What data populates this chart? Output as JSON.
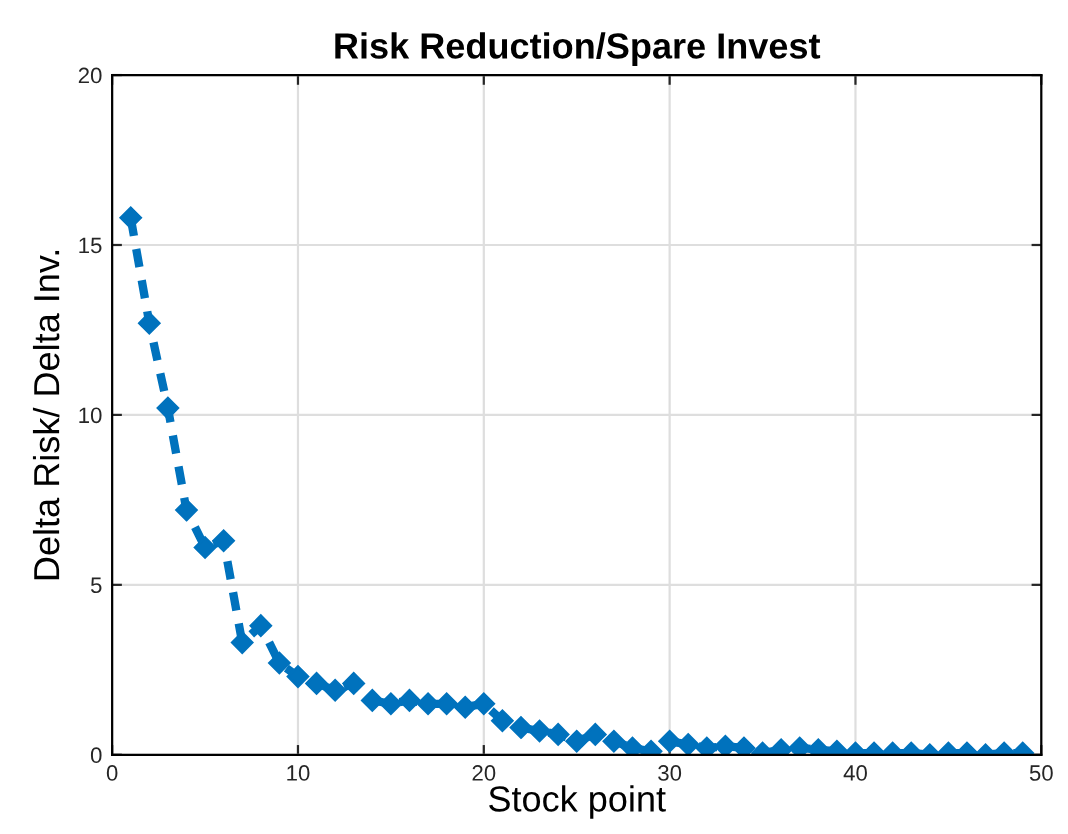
{
  "chart_data": {
    "type": "line",
    "title": "Risk Reduction/Spare Invest",
    "xlabel": "Stock point",
    "ylabel": "Delta Risk/ Delta Inv.",
    "x": [
      1,
      2,
      3,
      4,
      5,
      6,
      7,
      8,
      9,
      10,
      11,
      12,
      13,
      14,
      15,
      16,
      17,
      18,
      19,
      20,
      21,
      22,
      23,
      24,
      25,
      26,
      27,
      28,
      29,
      30,
      31,
      32,
      33,
      34,
      35,
      36,
      37,
      38,
      39,
      40,
      41,
      42,
      43,
      44,
      45,
      46,
      47,
      48,
      49
    ],
    "series": [
      {
        "color": "#0072bd",
        "values": [
          15.8,
          12.7,
          10.2,
          7.2,
          6.1,
          6.3,
          3.3,
          3.8,
          2.7,
          2.3,
          2.1,
          1.9,
          2.1,
          1.6,
          1.5,
          1.6,
          1.5,
          1.5,
          1.4,
          1.5,
          1.0,
          0.8,
          0.7,
          0.6,
          0.4,
          0.6,
          0.4,
          0.2,
          0.1,
          0.4,
          0.3,
          0.2,
          0.25,
          0.2,
          0.05,
          0.15,
          0.2,
          0.15,
          0.1,
          0.05,
          0.05,
          0.05,
          0.05,
          0.0,
          0.05,
          0.05,
          0.0,
          0.05,
          0.05
        ]
      }
    ],
    "xlim": [
      0,
      50
    ],
    "xticks": [
      0,
      10,
      20,
      30,
      40,
      50
    ],
    "ylim": [
      0,
      20
    ],
    "yticks": [
      0,
      5,
      10,
      15,
      20
    ],
    "grid": true,
    "marker": "diamond",
    "line_style": "dashed",
    "legend": false
  }
}
